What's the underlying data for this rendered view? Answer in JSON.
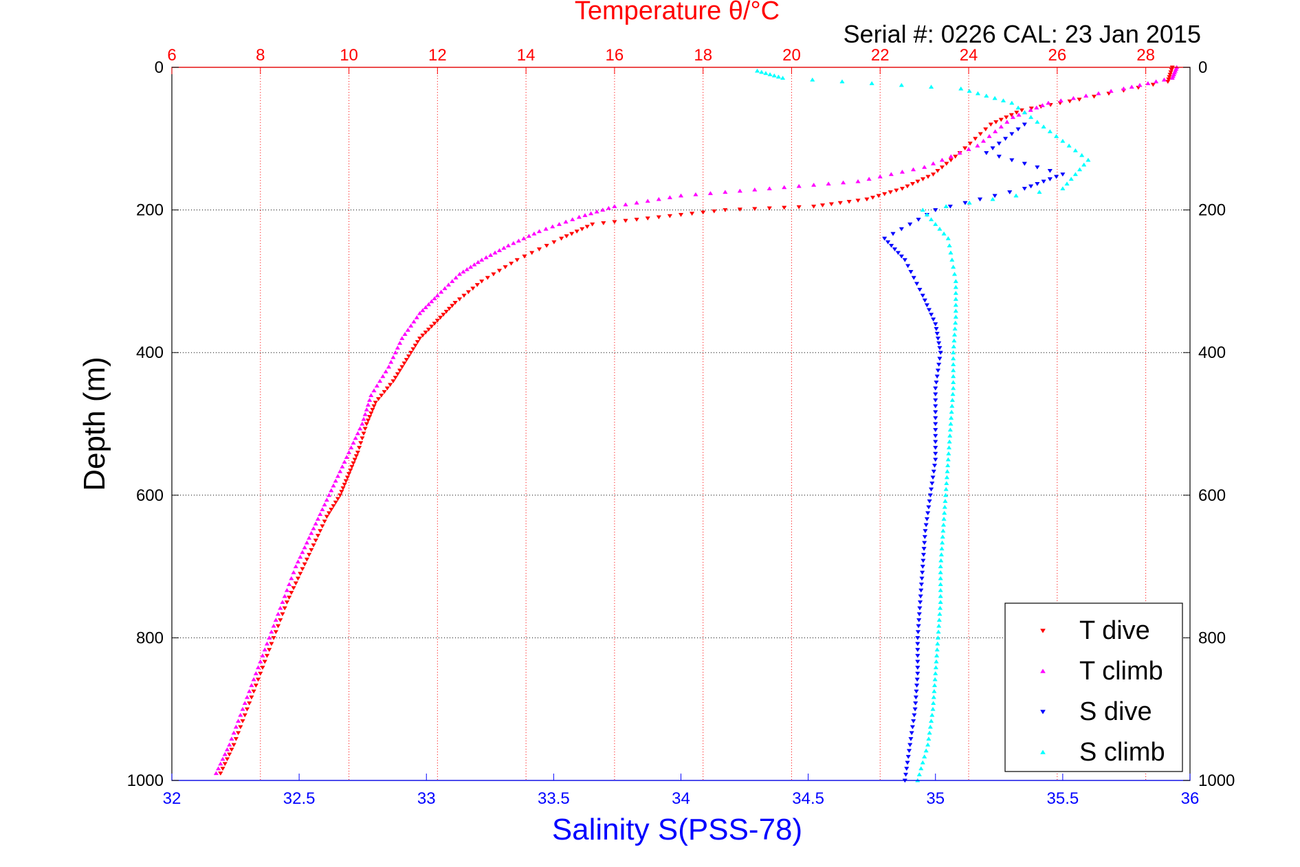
{
  "chart_data": {
    "type": "scatter",
    "title": "Temperature θ/°C",
    "subtitle": "Serial #: 0226  CAL: 23 Jan 2015",
    "xlabel": "Salinity S(PSS-78)",
    "ylabel": "Depth (m)",
    "x_bottom": {
      "label": "Salinity S(PSS-78)",
      "lim": [
        32,
        36
      ],
      "ticks": [
        32,
        32.5,
        33,
        33.5,
        34,
        34.5,
        35,
        35.5,
        36
      ],
      "color": "#0000ff"
    },
    "x_top": {
      "label": "Temperature θ/°C",
      "lim": [
        6,
        29
      ],
      "ticks": [
        6,
        8,
        10,
        12,
        14,
        16,
        18,
        20,
        22,
        24,
        26,
        28
      ],
      "color": "#ff0000"
    },
    "y": {
      "label": "Depth (m)",
      "lim": [
        0,
        1000
      ],
      "reversed": true,
      "ticks": [
        0,
        200,
        400,
        600,
        800,
        1000
      ]
    },
    "grid": true,
    "legend_position": "bottom-right",
    "series": [
      {
        "name": "T dive",
        "axis": "temperature",
        "color": "#ff0000",
        "marker": "triangle-down",
        "points": [
          [
            28.6,
            0
          ],
          [
            28.5,
            20
          ],
          [
            26.5,
            45
          ],
          [
            25.2,
            60
          ],
          [
            24.5,
            80
          ],
          [
            23.8,
            120
          ],
          [
            23.2,
            150
          ],
          [
            22.5,
            170
          ],
          [
            21.7,
            185
          ],
          [
            20.5,
            195
          ],
          [
            18.5,
            200
          ],
          [
            17.0,
            210
          ],
          [
            15.5,
            220
          ],
          [
            14.8,
            240
          ],
          [
            13.8,
            270
          ],
          [
            13.0,
            300
          ],
          [
            12.4,
            330
          ],
          [
            12.0,
            355
          ],
          [
            11.6,
            380
          ],
          [
            11.3,
            410
          ],
          [
            11.0,
            440
          ],
          [
            10.6,
            470
          ],
          [
            10.4,
            500
          ],
          [
            10.2,
            540
          ],
          [
            10.0,
            570
          ],
          [
            9.8,
            600
          ],
          [
            9.5,
            630
          ],
          [
            9.2,
            670
          ],
          [
            8.9,
            710
          ],
          [
            8.6,
            750
          ],
          [
            8.3,
            800
          ],
          [
            8.0,
            850
          ],
          [
            7.7,
            900
          ],
          [
            7.4,
            950
          ],
          [
            7.1,
            990
          ]
        ]
      },
      {
        "name": "T climb",
        "axis": "temperature",
        "color": "#ff00ff",
        "marker": "triangle-up",
        "points": [
          [
            28.7,
            0
          ],
          [
            28.6,
            15
          ],
          [
            27.5,
            30
          ],
          [
            25.8,
            50
          ],
          [
            25.0,
            70
          ],
          [
            24.2,
            110
          ],
          [
            23.0,
            140
          ],
          [
            21.5,
            160
          ],
          [
            19.5,
            170
          ],
          [
            17.5,
            180
          ],
          [
            16.0,
            195
          ],
          [
            15.2,
            210
          ],
          [
            14.3,
            230
          ],
          [
            13.6,
            250
          ],
          [
            13.0,
            270
          ],
          [
            12.5,
            290
          ],
          [
            12.0,
            320
          ],
          [
            11.6,
            345
          ],
          [
            11.2,
            380
          ],
          [
            10.9,
            420
          ],
          [
            10.5,
            460
          ],
          [
            10.3,
            500
          ],
          [
            10.0,
            540
          ],
          [
            9.7,
            580
          ],
          [
            9.4,
            620
          ],
          [
            9.1,
            660
          ],
          [
            8.8,
            700
          ],
          [
            8.5,
            750
          ],
          [
            8.2,
            800
          ],
          [
            7.9,
            850
          ],
          [
            7.6,
            900
          ],
          [
            7.3,
            950
          ],
          [
            7.0,
            990
          ]
        ]
      },
      {
        "name": "S dive",
        "axis": "salinity",
        "color": "#0000ff",
        "marker": "triangle-down",
        "points": [
          [
            35.35,
            80
          ],
          [
            35.2,
            120
          ],
          [
            35.5,
            150
          ],
          [
            35.35,
            170
          ],
          [
            35.0,
            200
          ],
          [
            34.8,
            240
          ],
          [
            34.88,
            270
          ],
          [
            34.95,
            320
          ],
          [
            35.0,
            360
          ],
          [
            35.02,
            400
          ],
          [
            35.0,
            450
          ],
          [
            35.0,
            500
          ],
          [
            35.0,
            550
          ],
          [
            34.98,
            600
          ],
          [
            34.96,
            650
          ],
          [
            34.95,
            700
          ],
          [
            34.94,
            750
          ],
          [
            34.93,
            800
          ],
          [
            34.93,
            850
          ],
          [
            34.92,
            900
          ],
          [
            34.9,
            950
          ],
          [
            34.88,
            1000
          ]
        ]
      },
      {
        "name": "S climb",
        "axis": "salinity",
        "color": "#00ffff",
        "marker": "triangle-up",
        "points": [
          [
            34.3,
            5
          ],
          [
            34.4,
            15
          ],
          [
            35.1,
            30
          ],
          [
            35.3,
            50
          ],
          [
            35.45,
            90
          ],
          [
            35.6,
            130
          ],
          [
            35.5,
            170
          ],
          [
            34.95,
            200
          ],
          [
            35.05,
            240
          ],
          [
            35.08,
            300
          ],
          [
            35.08,
            350
          ],
          [
            35.07,
            400
          ],
          [
            35.07,
            450
          ],
          [
            35.06,
            500
          ],
          [
            35.05,
            550
          ],
          [
            35.04,
            600
          ],
          [
            35.03,
            650
          ],
          [
            35.02,
            700
          ],
          [
            35.02,
            750
          ],
          [
            35.01,
            800
          ],
          [
            35.0,
            850
          ],
          [
            34.99,
            900
          ],
          [
            34.97,
            950
          ],
          [
            34.93,
            1000
          ]
        ]
      }
    ]
  }
}
